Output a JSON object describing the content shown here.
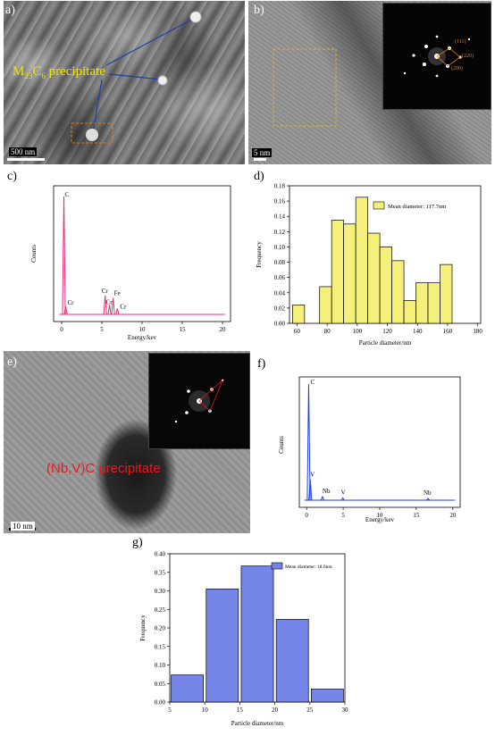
{
  "panels": {
    "a": {
      "label": "a)",
      "annotation_main": "M",
      "annotation_sub1": "23",
      "annotation_mid": "C",
      "annotation_sub2": "6",
      "annotation_tail": " precipitate",
      "scale_bar": "500 nm",
      "annotation_color": "#f2e600",
      "leader_color": "#1f3fa8"
    },
    "b": {
      "label": "b)",
      "scale_bar": "5 nm",
      "fft_labels": [
        "(111)",
        "(220)",
        "(200)"
      ]
    },
    "c": {
      "label": "c)",
      "xlabel": "Energy/kev",
      "ylabel": "Counts",
      "color": "#e0307a",
      "xticks": [
        "0",
        "5",
        "10",
        "15",
        "20"
      ],
      "peaks": [
        {
          "x": 0.28,
          "h": 1.0,
          "label": "C"
        },
        {
          "x": 0.5,
          "h": 0.07,
          "label": "Cr"
        },
        {
          "x": 5.41,
          "h": 0.16,
          "label": "Cr"
        },
        {
          "x": 5.95,
          "h": 0.08,
          "label": "Cr"
        },
        {
          "x": 6.4,
          "h": 0.14,
          "label": "Fe"
        },
        {
          "x": 6.93,
          "h": 0.05,
          "label": "Cr"
        }
      ]
    },
    "d": {
      "label": "d)",
      "chart_data": {
        "type": "bar",
        "xlabel": "Particle diameter/nm",
        "ylabel": "Frequency",
        "legend": "Mean diameter: 117.7nm",
        "legend_position": "top-right",
        "bar_color": "#f5f07a",
        "xlim": [
          55,
          182
        ],
        "ylim": [
          0,
          0.18
        ],
        "xticks": [
          "60",
          "80",
          "100",
          "120",
          "140",
          "160",
          "180"
        ],
        "yticks": [
          "0.00",
          "0.02",
          "0.04",
          "0.06",
          "0.08",
          "0.10",
          "0.12",
          "0.14",
          "0.16",
          "0.18"
        ],
        "bins": [
          {
            "from": 57,
            "to": 65,
            "value": 0.024
          },
          {
            "from": 75,
            "to": 83,
            "value": 0.048
          },
          {
            "from": 83,
            "to": 91,
            "value": 0.135
          },
          {
            "from": 91,
            "to": 99,
            "value": 0.13
          },
          {
            "from": 99,
            "to": 107,
            "value": 0.165
          },
          {
            "from": 107,
            "to": 115,
            "value": 0.118
          },
          {
            "from": 115,
            "to": 123,
            "value": 0.1
          },
          {
            "from": 123,
            "to": 131,
            "value": 0.082
          },
          {
            "from": 131,
            "to": 139,
            "value": 0.03
          },
          {
            "from": 139,
            "to": 147,
            "value": 0.053
          },
          {
            "from": 147,
            "to": 155,
            "value": 0.053
          },
          {
            "from": 155,
            "to": 163,
            "value": 0.077
          }
        ]
      }
    },
    "e": {
      "label": "e)",
      "annotation": "(Nb,V)C precipitate",
      "annotation_color": "#e8191e",
      "scale_bar": "10 nm"
    },
    "f": {
      "label": "f)",
      "xlabel": "Energy/kev",
      "ylabel": "Counts",
      "color": "#1f3fd8",
      "xticks": [
        "0",
        "5",
        "10",
        "15",
        "20"
      ],
      "peaks": [
        {
          "x": 0.28,
          "h": 1.0,
          "label": "C"
        },
        {
          "x": 0.5,
          "h": 0.18,
          "label": "V"
        },
        {
          "x": 2.17,
          "h": 0.03,
          "label": "Nb"
        },
        {
          "x": 4.95,
          "h": 0.02,
          "label": "V"
        },
        {
          "x": 16.6,
          "h": 0.015,
          "label": "Nb"
        }
      ]
    },
    "g": {
      "label": "g)",
      "chart_data": {
        "type": "bar",
        "xlabel": "Particle diameter/nm",
        "ylabel": "Frequency",
        "legend": "Mean diameter: 18.6nm",
        "legend_position": "top-right",
        "bar_color": "#7585e8",
        "xlim": [
          5,
          30
        ],
        "ylim": [
          0,
          0.4
        ],
        "xticks": [
          "5",
          "10",
          "15",
          "20",
          "25",
          "30"
        ],
        "yticks": [
          "0.00",
          "0.05",
          "0.10",
          "0.15",
          "0.20",
          "0.25",
          "0.30",
          "0.35",
          "0.40"
        ],
        "bins": [
          {
            "from": 5.2,
            "to": 9.8,
            "value": 0.073
          },
          {
            "from": 10.2,
            "to": 14.8,
            "value": 0.305
          },
          {
            "from": 15.2,
            "to": 19.8,
            "value": 0.367
          },
          {
            "from": 20.2,
            "to": 24.8,
            "value": 0.223
          },
          {
            "from": 25.2,
            "to": 29.8,
            "value": 0.035
          }
        ]
      }
    }
  }
}
